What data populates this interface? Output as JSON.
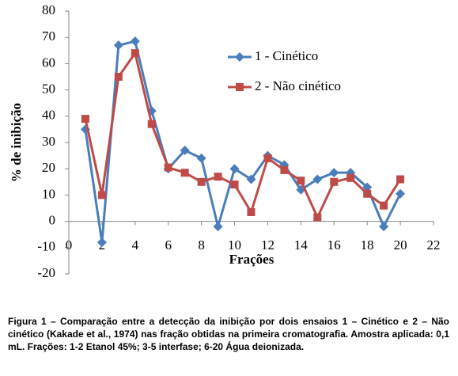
{
  "chart_data": {
    "type": "line",
    "y_label": "% de inibição",
    "x_label": "Frações",
    "x": [
      1,
      2,
      3,
      4,
      5,
      6,
      7,
      8,
      9,
      10,
      11,
      12,
      13,
      14,
      15,
      16,
      17,
      18,
      19,
      20
    ],
    "series": [
      {
        "name": "1 - Cinético",
        "color": "#4a7ebb",
        "marker": "diamond",
        "values": [
          35,
          -8,
          67,
          68.5,
          42,
          20,
          27,
          24,
          -2,
          20,
          16,
          25,
          21.5,
          12,
          16,
          18.5,
          18.5,
          13,
          -2,
          10.5
        ]
      },
      {
        "name": "2 - Não cinético",
        "color": "#be4b48",
        "marker": "square",
        "values": [
          39,
          10,
          55,
          64,
          37,
          20.5,
          18.5,
          15,
          17,
          14,
          3.5,
          24,
          19.5,
          15.5,
          1.5,
          15,
          16.5,
          10.5,
          6,
          16
        ]
      }
    ],
    "xlim": [
      0,
      22
    ],
    "xticks": [
      0,
      2,
      4,
      6,
      8,
      10,
      12,
      14,
      16,
      18,
      20,
      22
    ],
    "ylim": [
      -20,
      80
    ],
    "yticks": [
      -20,
      -10,
      0,
      10,
      20,
      30,
      40,
      50,
      60,
      70,
      80
    ],
    "grid": false
  },
  "caption": "Figura 1 – Comparação entre a detecção da inibição por dois ensaios 1 – Cinético e 2 – Não cinético (Kakade et al., 1974) nas fração obtidas na primeira cromatografia. Amostra aplicada: 0,1 mL. Frações: 1-2 Etanol 45%; 3-5 interfase; 6-20 Água deionizada."
}
